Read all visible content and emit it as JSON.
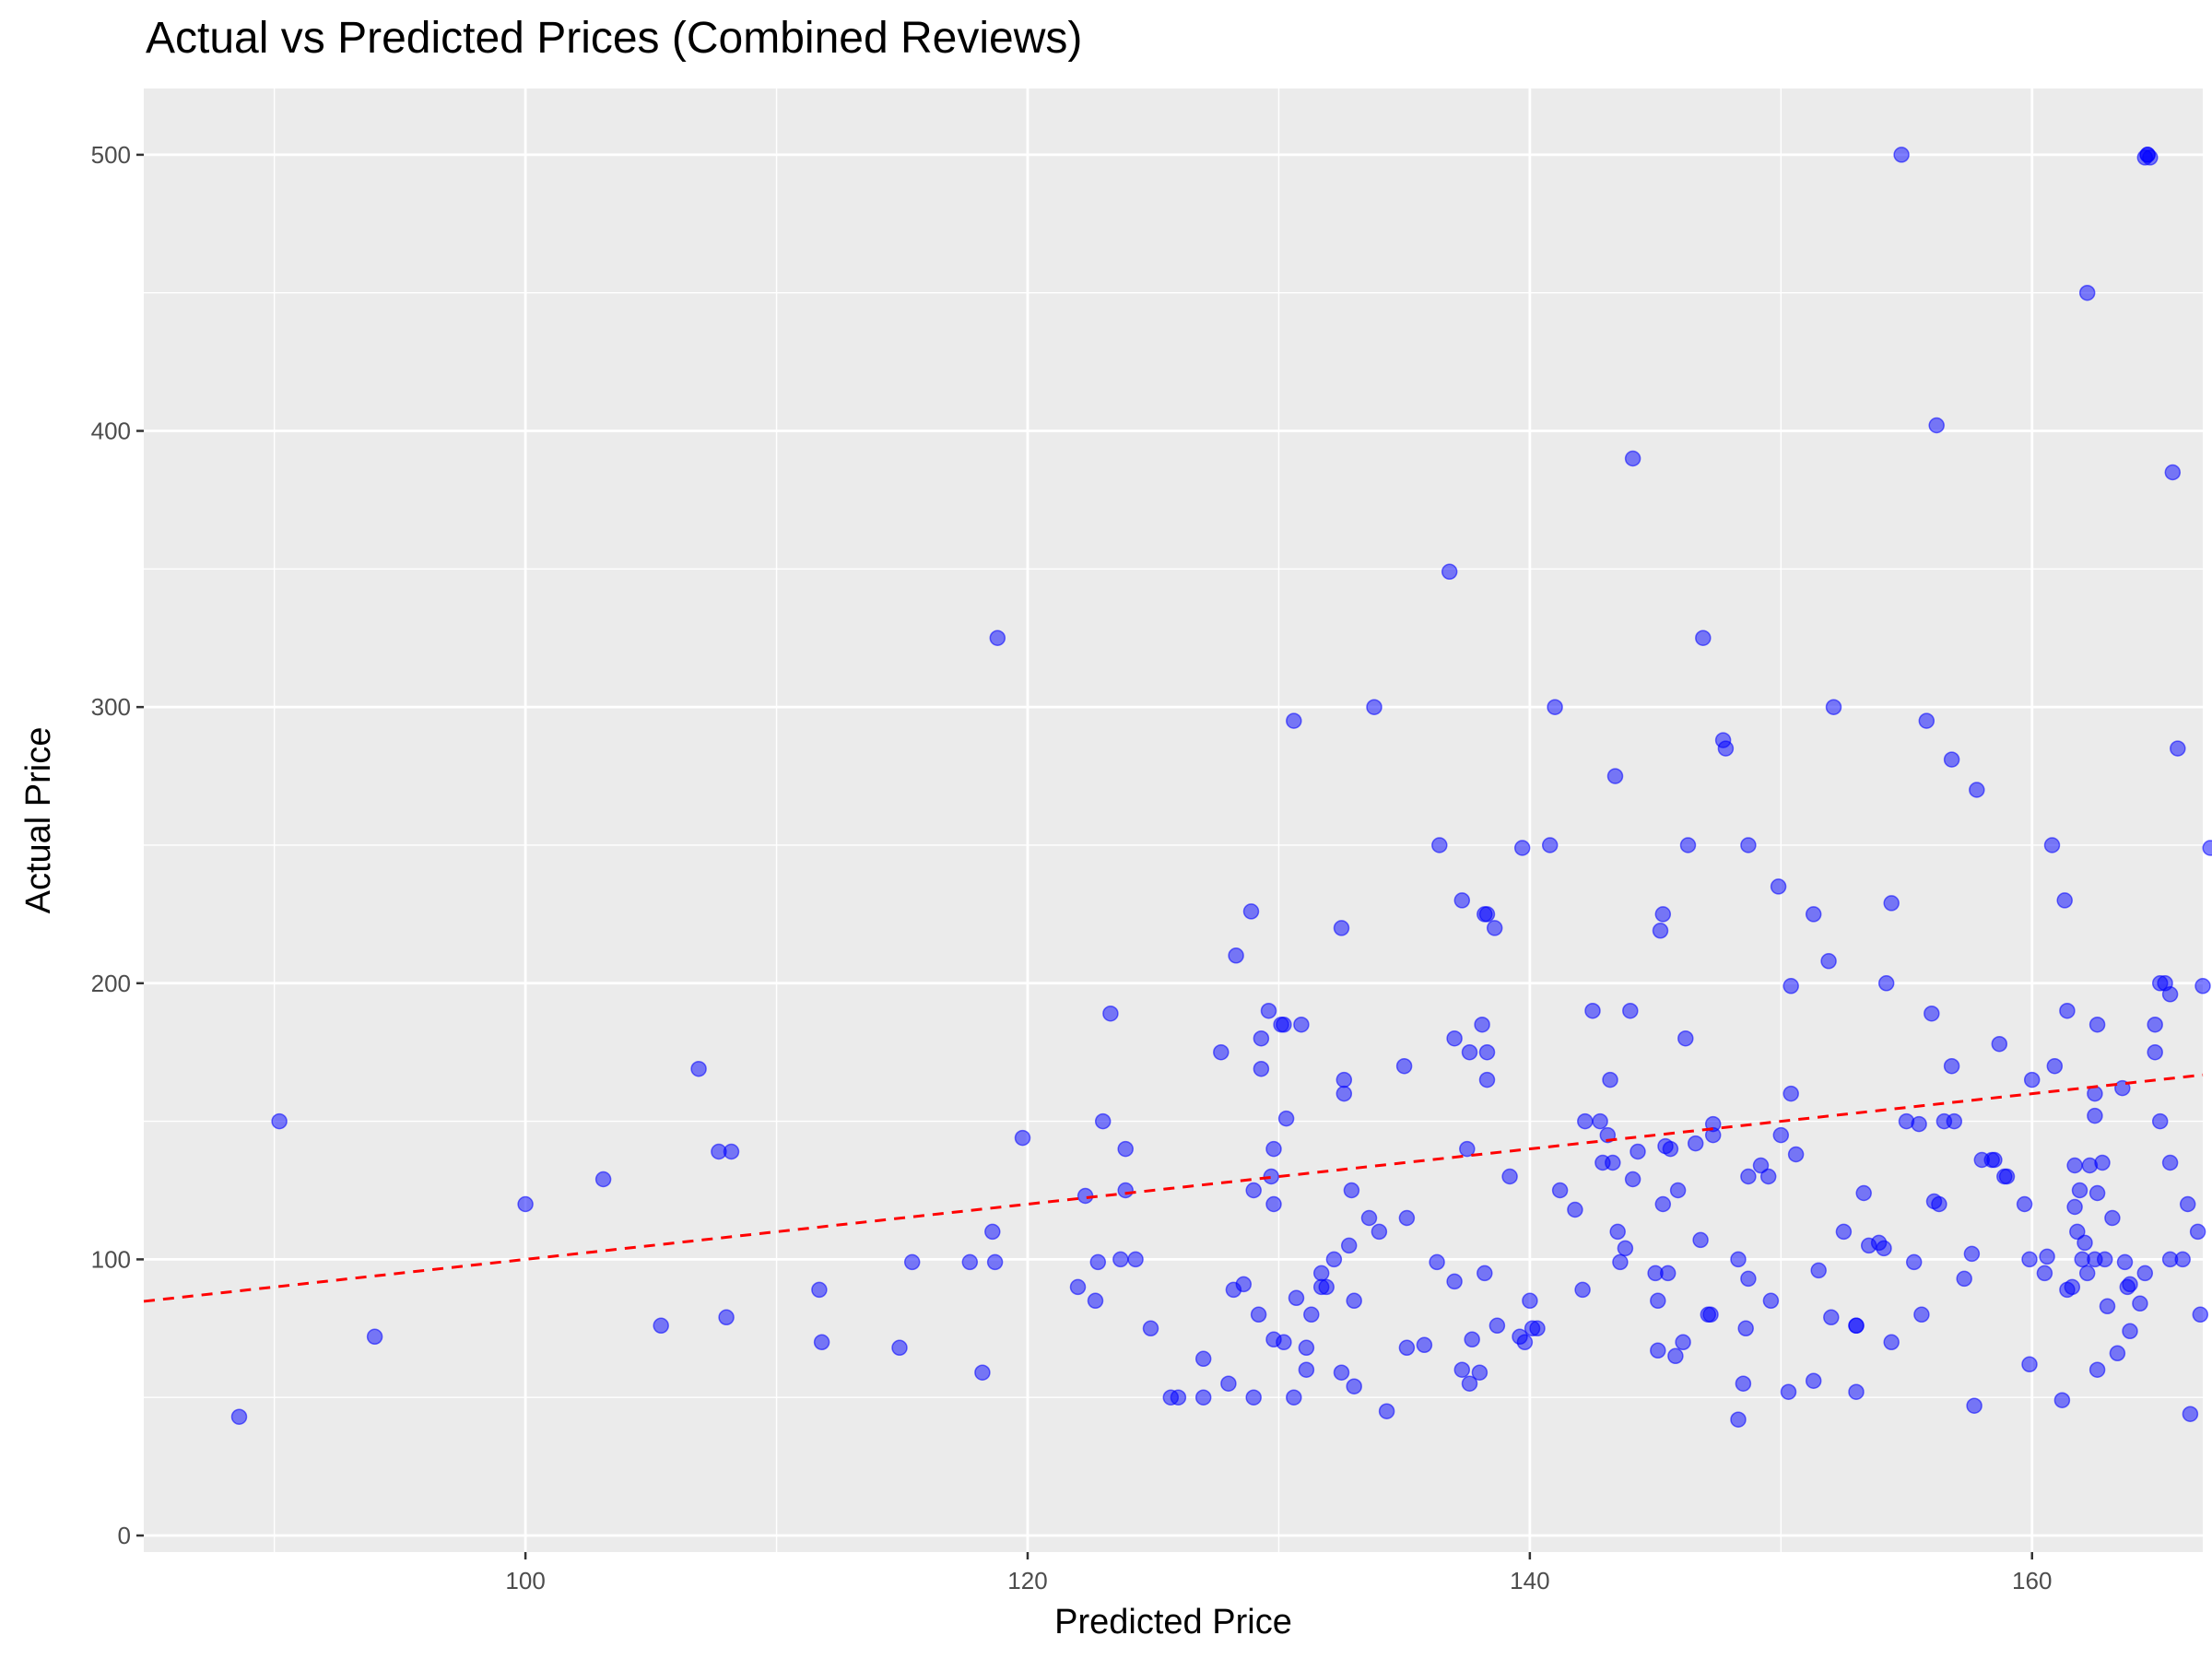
{
  "chart_data": {
    "type": "scatter",
    "title": "Actual vs Predicted Prices (Combined Reviews)",
    "xlabel": "Predicted Price",
    "ylabel": "Actual Price",
    "xlim": [
      84.8,
      166.8
    ],
    "ylim": [
      -6,
      524
    ],
    "x_ticks": [
      100,
      120,
      140,
      160
    ],
    "y_ticks": [
      0,
      100,
      200,
      300,
      400,
      500
    ],
    "grid": true,
    "legend": "none",
    "colors": {
      "points": "#0000FF",
      "reference_line": "#FF0000",
      "panel": "#EBEBEB",
      "grid": "#FFFFFF"
    },
    "reference_line": {
      "style": "dashed",
      "slope": 1,
      "intercept": 0
    },
    "points": [
      [
        88.6,
        43
      ],
      [
        90.2,
        150
      ],
      [
        94.0,
        72
      ],
      [
        100.0,
        120
      ],
      [
        103.1,
        129
      ],
      [
        105.4,
        76
      ],
      [
        106.9,
        169
      ],
      [
        107.7,
        139
      ],
      [
        108.0,
        79
      ],
      [
        108.2,
        139
      ],
      [
        111.7,
        89
      ],
      [
        111.8,
        70
      ],
      [
        114.9,
        68
      ],
      [
        115.4,
        99
      ],
      [
        117.7,
        99
      ],
      [
        118.2,
        59
      ],
      [
        118.6,
        110
      ],
      [
        118.7,
        99
      ],
      [
        118.8,
        325
      ],
      [
        119.8,
        144
      ],
      [
        122.0,
        90
      ],
      [
        122.3,
        123
      ],
      [
        122.7,
        85
      ],
      [
        122.8,
        99
      ],
      [
        123.0,
        150
      ],
      [
        123.3,
        189
      ],
      [
        123.7,
        100
      ],
      [
        123.9,
        140
      ],
      [
        123.9,
        125
      ],
      [
        124.3,
        100
      ],
      [
        124.9,
        75
      ],
      [
        125.7,
        50
      ],
      [
        126.0,
        50
      ],
      [
        127.0,
        64
      ],
      [
        127.0,
        50
      ],
      [
        127.7,
        175
      ],
      [
        128.0,
        55
      ],
      [
        128.2,
        89
      ],
      [
        128.3,
        210
      ],
      [
        128.6,
        91
      ],
      [
        128.9,
        226
      ],
      [
        129.0,
        50
      ],
      [
        129.0,
        125
      ],
      [
        129.2,
        80
      ],
      [
        129.3,
        169
      ],
      [
        129.3,
        180
      ],
      [
        129.6,
        190
      ],
      [
        129.7,
        130
      ],
      [
        129.8,
        140
      ],
      [
        129.8,
        120
      ],
      [
        129.8,
        71
      ],
      [
        130.1,
        185
      ],
      [
        130.2,
        70
      ],
      [
        130.2,
        185
      ],
      [
        130.3,
        151
      ],
      [
        130.6,
        295
      ],
      [
        130.6,
        50
      ],
      [
        130.7,
        86
      ],
      [
        130.9,
        185
      ],
      [
        131.1,
        68
      ],
      [
        131.1,
        60
      ],
      [
        131.3,
        80
      ],
      [
        131.7,
        90
      ],
      [
        131.7,
        95
      ],
      [
        131.9,
        90
      ],
      [
        132.2,
        100
      ],
      [
        132.5,
        59
      ],
      [
        132.5,
        220
      ],
      [
        132.6,
        160
      ],
      [
        132.6,
        165
      ],
      [
        132.8,
        105
      ],
      [
        132.9,
        125
      ],
      [
        133.0,
        85
      ],
      [
        133.0,
        54
      ],
      [
        133.6,
        115
      ],
      [
        133.8,
        300
      ],
      [
        134.0,
        110
      ],
      [
        134.3,
        45
      ],
      [
        135.0,
        170
      ],
      [
        135.1,
        115
      ],
      [
        135.1,
        68
      ],
      [
        135.8,
        69
      ],
      [
        136.3,
        99
      ],
      [
        136.4,
        250
      ],
      [
        136.8,
        349
      ],
      [
        137.0,
        180
      ],
      [
        137.0,
        92
      ],
      [
        137.3,
        60
      ],
      [
        137.3,
        230
      ],
      [
        137.5,
        140
      ],
      [
        137.6,
        175
      ],
      [
        137.6,
        55
      ],
      [
        137.7,
        71
      ],
      [
        138.0,
        59
      ],
      [
        138.1,
        185
      ],
      [
        138.2,
        225
      ],
      [
        138.2,
        95
      ],
      [
        138.3,
        175
      ],
      [
        138.3,
        225
      ],
      [
        138.3,
        165
      ],
      [
        138.6,
        220
      ],
      [
        138.7,
        76
      ],
      [
        139.2,
        130
      ],
      [
        139.6,
        72
      ],
      [
        139.7,
        249
      ],
      [
        139.8,
        70
      ],
      [
        140.0,
        85
      ],
      [
        140.1,
        75
      ],
      [
        140.3,
        75
      ],
      [
        140.8,
        250
      ],
      [
        141.0,
        300
      ],
      [
        141.2,
        125
      ],
      [
        141.8,
        118
      ],
      [
        142.1,
        89
      ],
      [
        142.2,
        150
      ],
      [
        142.5,
        190
      ],
      [
        142.8,
        150
      ],
      [
        142.9,
        135
      ],
      [
        143.1,
        145
      ],
      [
        143.2,
        165
      ],
      [
        143.3,
        135
      ],
      [
        143.4,
        275
      ],
      [
        143.5,
        110
      ],
      [
        143.6,
        99
      ],
      [
        143.8,
        104
      ],
      [
        144.0,
        190
      ],
      [
        144.1,
        390
      ],
      [
        144.1,
        129
      ],
      [
        144.3,
        139
      ],
      [
        145.0,
        95
      ],
      [
        145.1,
        85
      ],
      [
        145.1,
        67
      ],
      [
        145.2,
        219
      ],
      [
        145.3,
        225
      ],
      [
        145.3,
        120
      ],
      [
        145.4,
        141
      ],
      [
        145.5,
        95
      ],
      [
        145.6,
        140
      ],
      [
        145.8,
        65
      ],
      [
        145.9,
        125
      ],
      [
        146.1,
        70
      ],
      [
        146.2,
        180
      ],
      [
        146.3,
        250
      ],
      [
        146.6,
        142
      ],
      [
        146.8,
        107
      ],
      [
        146.9,
        325
      ],
      [
        147.1,
        80
      ],
      [
        147.2,
        80
      ],
      [
        147.3,
        149
      ],
      [
        147.3,
        145
      ],
      [
        147.7,
        288
      ],
      [
        147.8,
        285
      ],
      [
        148.3,
        42
      ],
      [
        148.3,
        100
      ],
      [
        148.5,
        55
      ],
      [
        148.6,
        75
      ],
      [
        148.7,
        130
      ],
      [
        148.7,
        250
      ],
      [
        148.7,
        93
      ],
      [
        149.2,
        134
      ],
      [
        149.5,
        130
      ],
      [
        149.6,
        85
      ],
      [
        149.9,
        235
      ],
      [
        150.0,
        145
      ],
      [
        150.3,
        52
      ],
      [
        150.4,
        199
      ],
      [
        150.4,
        160
      ],
      [
        150.6,
        138
      ],
      [
        151.3,
        225
      ],
      [
        151.3,
        56
      ],
      [
        151.5,
        96
      ],
      [
        151.9,
        208
      ],
      [
        152.0,
        79
      ],
      [
        152.1,
        300
      ],
      [
        152.5,
        110
      ],
      [
        153.0,
        52
      ],
      [
        153.0,
        76
      ],
      [
        153.0,
        76
      ],
      [
        153.3,
        124
      ],
      [
        153.5,
        105
      ],
      [
        153.9,
        106
      ],
      [
        154.1,
        104
      ],
      [
        154.2,
        200
      ],
      [
        154.4,
        229
      ],
      [
        154.4,
        70
      ],
      [
        154.8,
        500
      ],
      [
        155.0,
        150
      ],
      [
        155.3,
        99
      ],
      [
        155.5,
        149
      ],
      [
        155.6,
        80
      ],
      [
        155.8,
        295
      ],
      [
        156.0,
        189
      ],
      [
        156.1,
        121
      ],
      [
        156.2,
        402
      ],
      [
        156.3,
        120
      ],
      [
        156.5,
        150
      ],
      [
        156.8,
        281
      ],
      [
        156.8,
        170
      ],
      [
        156.9,
        150
      ],
      [
        157.3,
        93
      ],
      [
        157.6,
        102
      ],
      [
        157.7,
        47
      ],
      [
        157.8,
        270
      ],
      [
        158.0,
        136
      ],
      [
        158.4,
        136
      ],
      [
        158.5,
        136
      ],
      [
        158.7,
        178
      ],
      [
        158.9,
        130
      ],
      [
        159.0,
        130
      ],
      [
        159.7,
        120
      ],
      [
        159.9,
        62
      ],
      [
        159.9,
        100
      ],
      [
        160.0,
        165
      ],
      [
        160.5,
        95
      ],
      [
        160.6,
        101
      ],
      [
        160.8,
        250
      ],
      [
        160.9,
        170
      ],
      [
        161.2,
        49
      ],
      [
        161.3,
        230
      ],
      [
        161.4,
        190
      ],
      [
        161.4,
        89
      ],
      [
        161.6,
        90
      ],
      [
        161.7,
        119
      ],
      [
        161.7,
        134
      ],
      [
        161.8,
        110
      ],
      [
        161.9,
        125
      ],
      [
        162.0,
        100
      ],
      [
        162.1,
        106
      ],
      [
        162.2,
        95
      ],
      [
        162.2,
        450
      ],
      [
        162.3,
        134
      ],
      [
        162.5,
        160
      ],
      [
        162.5,
        100
      ],
      [
        162.5,
        152
      ],
      [
        162.6,
        185
      ],
      [
        162.6,
        60
      ],
      [
        162.6,
        124
      ],
      [
        162.8,
        135
      ],
      [
        162.9,
        100
      ],
      [
        163.0,
        83
      ],
      [
        163.2,
        115
      ],
      [
        163.4,
        66
      ],
      [
        163.6,
        162
      ],
      [
        163.7,
        99
      ],
      [
        163.8,
        90
      ],
      [
        163.9,
        91
      ],
      [
        163.9,
        74
      ],
      [
        164.3,
        84
      ],
      [
        164.5,
        95
      ],
      [
        164.5,
        499
      ],
      [
        164.6,
        500
      ],
      [
        164.6,
        500
      ],
      [
        164.7,
        499
      ],
      [
        164.9,
        185
      ],
      [
        164.9,
        175
      ],
      [
        165.1,
        150
      ],
      [
        165.1,
        200
      ],
      [
        165.3,
        200
      ],
      [
        165.5,
        135
      ],
      [
        165.5,
        100
      ],
      [
        165.5,
        196
      ],
      [
        165.6,
        385
      ],
      [
        165.8,
        285
      ],
      [
        166.0,
        100
      ],
      [
        166.2,
        120
      ],
      [
        166.3,
        44
      ],
      [
        166.6,
        110
      ],
      [
        166.7,
        80
      ],
      [
        166.8,
        199
      ],
      [
        167.1,
        249
      ]
    ]
  }
}
